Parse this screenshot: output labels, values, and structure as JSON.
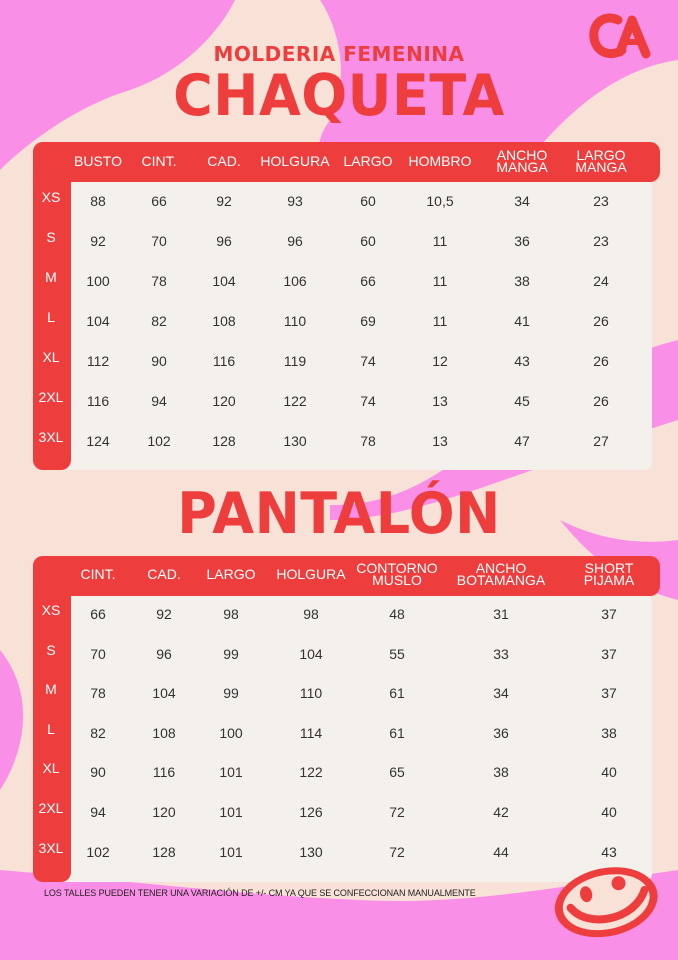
{
  "subtitle": "MOLDERIA FEMENINA",
  "jacket": {
    "title": "CHAQUETA",
    "columns": [
      "BUSTO",
      "CINT.",
      "CAD.",
      "HOLGURA",
      "LARGO",
      "HOMBRO",
      "ANCHO MANGA",
      "LARGO MANGA"
    ],
    "sizes": [
      "XS",
      "S",
      "M",
      "L",
      "XL",
      "2XL",
      "3XL"
    ],
    "rows": [
      [
        "88",
        "66",
        "92",
        "93",
        "60",
        "10,5",
        "34",
        "23"
      ],
      [
        "92",
        "70",
        "96",
        "96",
        "60",
        "11",
        "36",
        "23"
      ],
      [
        "100",
        "78",
        "104",
        "106",
        "66",
        "11",
        "38",
        "24"
      ],
      [
        "104",
        "82",
        "108",
        "110",
        "69",
        "11",
        "41",
        "26"
      ],
      [
        "112",
        "90",
        "116",
        "119",
        "74",
        "12",
        "43",
        "26"
      ],
      [
        "116",
        "94",
        "120",
        "122",
        "74",
        "13",
        "45",
        "26"
      ],
      [
        "124",
        "102",
        "128",
        "130",
        "78",
        "13",
        "47",
        "27"
      ]
    ]
  },
  "pants": {
    "title": "PANTALÓN",
    "columns": [
      "CINT.",
      "CAD.",
      "LARGO",
      "HOLGURA",
      "CONTORNO MUSLO",
      "ANCHO BOTAMANGA",
      "SHORT PIJAMA"
    ],
    "sizes": [
      "XS",
      "S",
      "M",
      "L",
      "XL",
      "2XL",
      "3XL"
    ],
    "rows": [
      [
        "66",
        "92",
        "98",
        "98",
        "48",
        "31",
        "37"
      ],
      [
        "70",
        "96",
        "99",
        "104",
        "55",
        "33",
        "37"
      ],
      [
        "78",
        "104",
        "99",
        "110",
        "61",
        "34",
        "37"
      ],
      [
        "82",
        "108",
        "100",
        "114",
        "61",
        "36",
        "38"
      ],
      [
        "90",
        "116",
        "101",
        "122",
        "65",
        "38",
        "40"
      ],
      [
        "94",
        "120",
        "101",
        "126",
        "72",
        "42",
        "40"
      ],
      [
        "102",
        "128",
        "101",
        "130",
        "72",
        "44",
        "43"
      ]
    ]
  },
  "footnote": "LOS TALLES PUEDEN TENER UNA VARIACIÓN DE +/- CM YA QUE SE CONFECCIONAN MANUALMENTE",
  "colors": {
    "accent": "#ee3d3d",
    "pink": "#fa8fe7",
    "background": "#f8e2d8",
    "panel": "#f4f1ed"
  },
  "icons": [
    "brand-logo-icon",
    "smiley-face-icon"
  ]
}
